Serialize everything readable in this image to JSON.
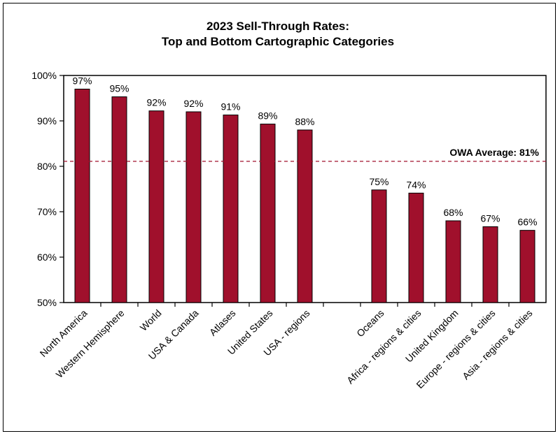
{
  "chart_data": {
    "type": "bar",
    "title_lines": [
      "2023 Sell-Through Rates:",
      "Top and Bottom Cartographic Categories"
    ],
    "categories": [
      "North America",
      "Western Hemisphere",
      "World",
      "USA & Canada",
      "Atlases",
      "United States",
      "USA - regions",
      "",
      "Oceans",
      "Africa - regions & cities",
      "United Kingdom",
      "Europe - regions & cities",
      "Asia - regions & cities"
    ],
    "values": [
      97,
      95.3,
      92.2,
      92,
      91.3,
      89.3,
      88,
      null,
      74.8,
      74.1,
      68,
      66.7,
      65.9
    ],
    "data_labels": [
      "97%",
      "95%",
      "92%",
      "92%",
      "91%",
      "89%",
      "88%",
      "",
      "75%",
      "74%",
      "68%",
      "67%",
      "66%"
    ],
    "ylim": [
      50,
      100
    ],
    "yticks": [
      50,
      60,
      70,
      80,
      90,
      100
    ],
    "ytick_labels": [
      "50%",
      "60%",
      "70%",
      "80%",
      "90%",
      "100%"
    ],
    "average": {
      "value": 81.1,
      "label": "OWA Average:  81%",
      "style": "dashed"
    },
    "bar_color": "#A0102C",
    "average_color": "#A0102C",
    "grid": false,
    "legend": "none"
  }
}
